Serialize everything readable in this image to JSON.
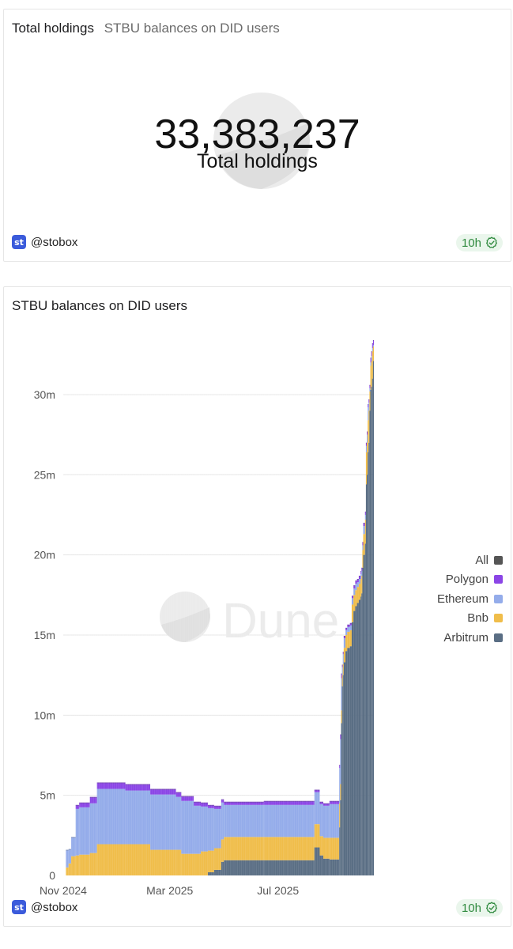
{
  "counter_card": {
    "title": "Total holdings",
    "subtitle": "STBU balances on DID users",
    "value": "33,383,237",
    "label": "Total holdings",
    "owner": "@stobox",
    "owner_logo": "st",
    "freshness": "10h"
  },
  "chart_card": {
    "title": "STBU balances on DID users",
    "owner": "@stobox",
    "owner_logo": "st",
    "freshness": "10h",
    "watermark": "Dune"
  },
  "colors": {
    "All": "#555555",
    "Polygon": "#8b45e6",
    "Ethereum": "#94acea",
    "Bnb": "#f0bd4a",
    "Arbitrum": "#5a6e84",
    "grid": "#e6e6e6",
    "axis_text": "#555555"
  },
  "chart_data": {
    "type": "bar",
    "stacked": true,
    "title": "STBU balances on DID users",
    "xlabel": "",
    "ylabel": "",
    "ylim": [
      0,
      33500000
    ],
    "yticks": [
      0,
      5000000,
      10000000,
      15000000,
      20000000,
      25000000,
      30000000
    ],
    "ytick_labels": [
      "0",
      "5m",
      "10m",
      "15m",
      "20m",
      "25m",
      "30m"
    ],
    "xtick_labels": [
      "Nov 2024",
      "Mar 2025",
      "Jul 2025"
    ],
    "xtick_dates": [
      "2024-11-01",
      "2025-03-01",
      "2025-07-01"
    ],
    "x_range": [
      "2024-11-01",
      "2025-10-17"
    ],
    "legend": [
      "All",
      "Polygon",
      "Ethereum",
      "Bnb",
      "Arbitrum"
    ],
    "legend_position": "right",
    "grid": true,
    "total_holdings": 33383237,
    "segments": [
      {
        "start": "2024-11-01",
        "end": "2024-11-04",
        "Arbitrum": 0,
        "Bnb": 0,
        "Ethereum": 0,
        "Polygon": 0
      },
      {
        "start": "2024-11-04",
        "end": "2024-11-07",
        "Arbitrum": 0,
        "Bnb": 500000,
        "Ethereum": 1100000,
        "Polygon": 0
      },
      {
        "start": "2024-11-07",
        "end": "2024-11-10",
        "Arbitrum": 0,
        "Bnb": 750000,
        "Ethereum": 900000,
        "Polygon": 0
      },
      {
        "start": "2024-11-10",
        "end": "2024-11-15",
        "Arbitrum": 0,
        "Bnb": 1200000,
        "Ethereum": 1200000,
        "Polygon": 0
      },
      {
        "start": "2024-11-15",
        "end": "2024-11-19",
        "Arbitrum": 0,
        "Bnb": 1250000,
        "Ethereum": 2900000,
        "Polygon": 250000
      },
      {
        "start": "2024-11-19",
        "end": "2024-12-01",
        "Arbitrum": 0,
        "Bnb": 1300000,
        "Ethereum": 2950000,
        "Polygon": 300000
      },
      {
        "start": "2024-12-01",
        "end": "2024-12-09",
        "Arbitrum": 0,
        "Bnb": 1400000,
        "Ethereum": 3100000,
        "Polygon": 400000
      },
      {
        "start": "2024-12-09",
        "end": "2025-01-10",
        "Arbitrum": 0,
        "Bnb": 1950000,
        "Ethereum": 3450000,
        "Polygon": 400000
      },
      {
        "start": "2025-01-10",
        "end": "2025-02-07",
        "Arbitrum": 0,
        "Bnb": 1950000,
        "Ethereum": 3350000,
        "Polygon": 400000
      },
      {
        "start": "2025-02-07",
        "end": "2025-03-08",
        "Arbitrum": 0,
        "Bnb": 1600000,
        "Ethereum": 3450000,
        "Polygon": 350000
      },
      {
        "start": "2025-03-08",
        "end": "2025-03-14",
        "Arbitrum": 0,
        "Bnb": 1600000,
        "Ethereum": 3300000,
        "Polygon": 300000
      },
      {
        "start": "2025-03-14",
        "end": "2025-03-28",
        "Arbitrum": 0,
        "Bnb": 1350000,
        "Ethereum": 3300000,
        "Polygon": 300000
      },
      {
        "start": "2025-03-28",
        "end": "2025-04-05",
        "Arbitrum": 0,
        "Bnb": 1350000,
        "Ethereum": 3000000,
        "Polygon": 250000
      },
      {
        "start": "2025-04-05",
        "end": "2025-04-13",
        "Arbitrum": 0,
        "Bnb": 1500000,
        "Ethereum": 2800000,
        "Polygon": 250000
      },
      {
        "start": "2025-04-13",
        "end": "2025-04-20",
        "Arbitrum": 200000,
        "Bnb": 1350000,
        "Ethereum": 2650000,
        "Polygon": 200000
      },
      {
        "start": "2025-04-20",
        "end": "2025-04-28",
        "Arbitrum": 350000,
        "Bnb": 1350000,
        "Ethereum": 2450000,
        "Polygon": 200000
      },
      {
        "start": "2025-04-28",
        "end": "2025-05-01",
        "Arbitrum": 850000,
        "Bnb": 1400000,
        "Ethereum": 2300000,
        "Polygon": 200000
      },
      {
        "start": "2025-05-01",
        "end": "2025-06-15",
        "Arbitrum": 950000,
        "Bnb": 1450000,
        "Ethereum": 2000000,
        "Polygon": 200000
      },
      {
        "start": "2025-06-15",
        "end": "2025-08-11",
        "Arbitrum": 950000,
        "Bnb": 1450000,
        "Ethereum": 2000000,
        "Polygon": 250000
      },
      {
        "start": "2025-08-11",
        "end": "2025-08-17",
        "Arbitrum": 1750000,
        "Bnb": 1450000,
        "Ethereum": 2000000,
        "Polygon": 150000
      },
      {
        "start": "2025-08-17",
        "end": "2025-08-21",
        "Arbitrum": 1250000,
        "Bnb": 1200000,
        "Ethereum": 2000000,
        "Polygon": 150000
      },
      {
        "start": "2025-08-21",
        "end": "2025-08-28",
        "Arbitrum": 1050000,
        "Bnb": 1300000,
        "Ethereum": 2000000,
        "Polygon": 150000
      },
      {
        "start": "2025-08-28",
        "end": "2025-09-08",
        "Arbitrum": 1000000,
        "Bnb": 1350000,
        "Ethereum": 2100000,
        "Polygon": 200000
      }
    ],
    "spike_series": [
      {
        "date": "2025-09-08",
        "Arbitrum": 3000000,
        "Bnb": 1500000,
        "Ethereum": 2200000,
        "Polygon": 200000
      },
      {
        "date": "2025-09-09",
        "Arbitrum": 4700000,
        "Bnb": 1000000,
        "Ethereum": 2800000,
        "Polygon": 300000
      },
      {
        "date": "2025-09-10",
        "Arbitrum": 9500000,
        "Bnb": 800000,
        "Ethereum": 2000000,
        "Polygon": 300000
      },
      {
        "date": "2025-09-11",
        "Arbitrum": 11800000,
        "Bnb": 700000,
        "Ethereum": 500000,
        "Polygon": 150000
      },
      {
        "date": "2025-09-12",
        "Arbitrum": 12500000,
        "Bnb": 700000,
        "Ethereum": 600000,
        "Polygon": 150000
      },
      {
        "date": "2025-09-13",
        "Arbitrum": 13300000,
        "Bnb": 900000,
        "Ethereum": 600000,
        "Polygon": 150000
      },
      {
        "date": "2025-09-15",
        "Arbitrum": 14000000,
        "Bnb": 1000000,
        "Ethereum": 300000,
        "Polygon": 150000
      },
      {
        "date": "2025-09-17",
        "Arbitrum": 14200000,
        "Bnb": 1000000,
        "Ethereum": 300000,
        "Polygon": 150000
      },
      {
        "date": "2025-09-20",
        "Arbitrum": 14300000,
        "Bnb": 1000000,
        "Ethereum": 300000,
        "Polygon": 150000
      },
      {
        "date": "2025-09-22",
        "Arbitrum": 15800000,
        "Bnb": 1100000,
        "Ethereum": 400000,
        "Polygon": 150000
      },
      {
        "date": "2025-09-24",
        "Arbitrum": 16500000,
        "Bnb": 1000000,
        "Ethereum": 400000,
        "Polygon": 200000
      },
      {
        "date": "2025-09-26",
        "Arbitrum": 16800000,
        "Bnb": 1000000,
        "Ethereum": 400000,
        "Polygon": 200000
      },
      {
        "date": "2025-09-28",
        "Arbitrum": 17000000,
        "Bnb": 1000000,
        "Ethereum": 300000,
        "Polygon": 200000
      },
      {
        "date": "2025-09-30",
        "Arbitrum": 17200000,
        "Bnb": 1000000,
        "Ethereum": 300000,
        "Polygon": 200000
      },
      {
        "date": "2025-10-02",
        "Arbitrum": 17400000,
        "Bnb": 1100000,
        "Ethereum": 300000,
        "Polygon": 200000
      },
      {
        "date": "2025-10-03",
        "Arbitrum": 17600000,
        "Bnb": 1100000,
        "Ethereum": 300000,
        "Polygon": 200000
      },
      {
        "date": "2025-10-04",
        "Arbitrum": 19200000,
        "Bnb": 1100000,
        "Ethereum": 300000,
        "Polygon": 200000
      },
      {
        "date": "2025-10-05",
        "Arbitrum": 20000000,
        "Bnb": 1300000,
        "Ethereum": 500000,
        "Polygon": 200000
      },
      {
        "date": "2025-10-07",
        "Arbitrum": 20700000,
        "Bnb": 1500000,
        "Ethereum": 300000,
        "Polygon": 200000
      },
      {
        "date": "2025-10-08",
        "Arbitrum": 24400000,
        "Bnb": 2000000,
        "Ethereum": 400000,
        "Polygon": 200000
      },
      {
        "date": "2025-10-09",
        "Arbitrum": 25000000,
        "Bnb": 2000000,
        "Ethereum": 500000,
        "Polygon": 200000
      },
      {
        "date": "2025-10-10",
        "Arbitrum": 26400000,
        "Bnb": 2000000,
        "Ethereum": 800000,
        "Polygon": 200000
      },
      {
        "date": "2025-10-11",
        "Arbitrum": 27000000,
        "Bnb": 2000000,
        "Ethereum": 500000,
        "Polygon": 200000
      },
      {
        "date": "2025-10-12",
        "Arbitrum": 29000000,
        "Bnb": 1200000,
        "Ethereum": 200000,
        "Polygon": 200000
      },
      {
        "date": "2025-10-13",
        "Arbitrum": 30300000,
        "Bnb": 1500000,
        "Ethereum": 200000,
        "Polygon": 300000
      },
      {
        "date": "2025-10-14",
        "Arbitrum": 30500000,
        "Bnb": 1600000,
        "Ethereum": 300000,
        "Polygon": 300000
      },
      {
        "date": "2025-10-15",
        "Arbitrum": 31000000,
        "Bnb": 1700000,
        "Ethereum": 200000,
        "Polygon": 300000
      },
      {
        "date": "2025-10-16",
        "Arbitrum": 32100000,
        "Bnb": 900000,
        "Ethereum": 100000,
        "Polygon": 300000
      }
    ]
  }
}
